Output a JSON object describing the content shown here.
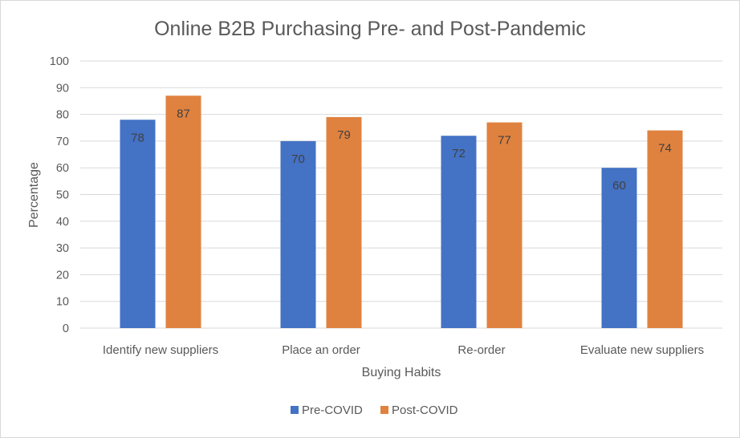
{
  "chart_data": {
    "type": "bar",
    "title": "Online B2B Purchasing Pre- and Post-Pandemic",
    "xlabel": "Buying Habits",
    "ylabel": "Percentage",
    "categories": [
      "Identify new suppliers",
      "Place an order",
      "Re-order",
      "Evaluate new suppliers"
    ],
    "series": [
      {
        "name": "Pre-COVID",
        "values": [
          78,
          70,
          72,
          60
        ],
        "color": "#4472c4"
      },
      {
        "name": "Post-COVID",
        "values": [
          87,
          79,
          77,
          74
        ],
        "color": "#e0823f"
      }
    ],
    "ylim": [
      0,
      100
    ],
    "yticks": [
      0,
      10,
      20,
      30,
      40,
      50,
      60,
      70,
      80,
      90,
      100
    ],
    "grid": true,
    "data_labels": true,
    "legend_position": "bottom"
  }
}
